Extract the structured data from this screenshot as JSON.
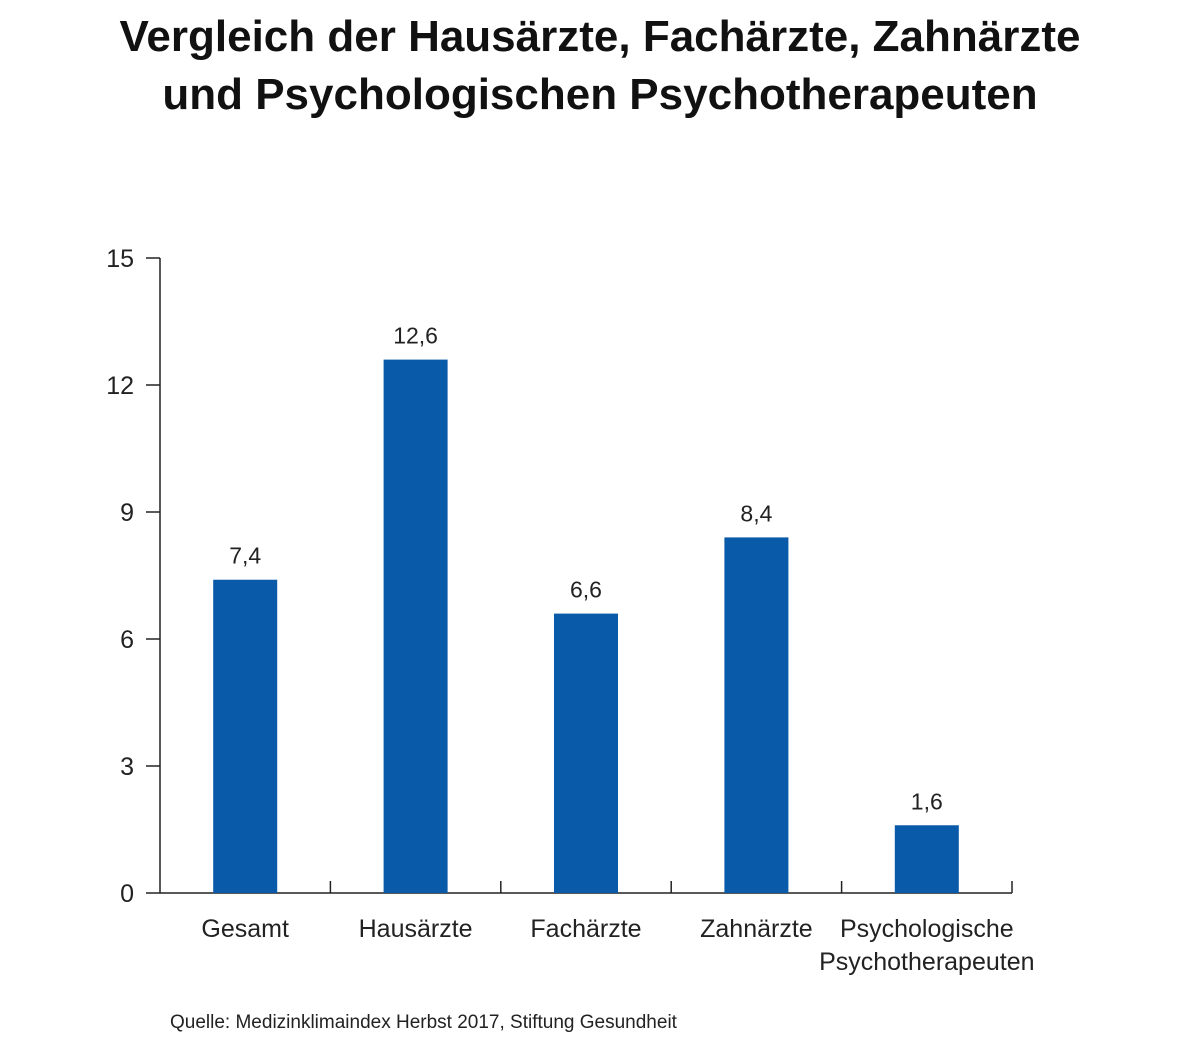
{
  "title_line1": "Vergleich der Hausärzte, Fachärzte, Zahnärzte",
  "title_line2": "und Psychologischen Psychotherapeuten",
  "source": "Quelle:  Medizinklimaindex Herbst 2017, Stiftung Gesundheit",
  "colors": {
    "bar": "#0a5aaa",
    "axis": "#222222"
  },
  "chart_data": {
    "type": "bar",
    "categories": [
      "Gesamt",
      "Hausärzte",
      "Fachärzte",
      "Zahnärzte",
      "Psychologische Psychotherapeuten"
    ],
    "category_lines": [
      [
        "Gesamt"
      ],
      [
        "Hausärzte"
      ],
      [
        "Fachärzte"
      ],
      [
        "Zahnärzte"
      ],
      [
        "Psychologische",
        "Psychotherapeuten"
      ]
    ],
    "values": [
      7.4,
      12.6,
      6.6,
      8.4,
      1.6
    ],
    "value_labels": [
      "7,4",
      "12,6",
      "6,6",
      "8,4",
      "1,6"
    ],
    "ylim": [
      0,
      15
    ],
    "yticks": [
      0,
      3,
      6,
      9,
      12,
      15
    ],
    "grid": false,
    "legend": "none"
  }
}
